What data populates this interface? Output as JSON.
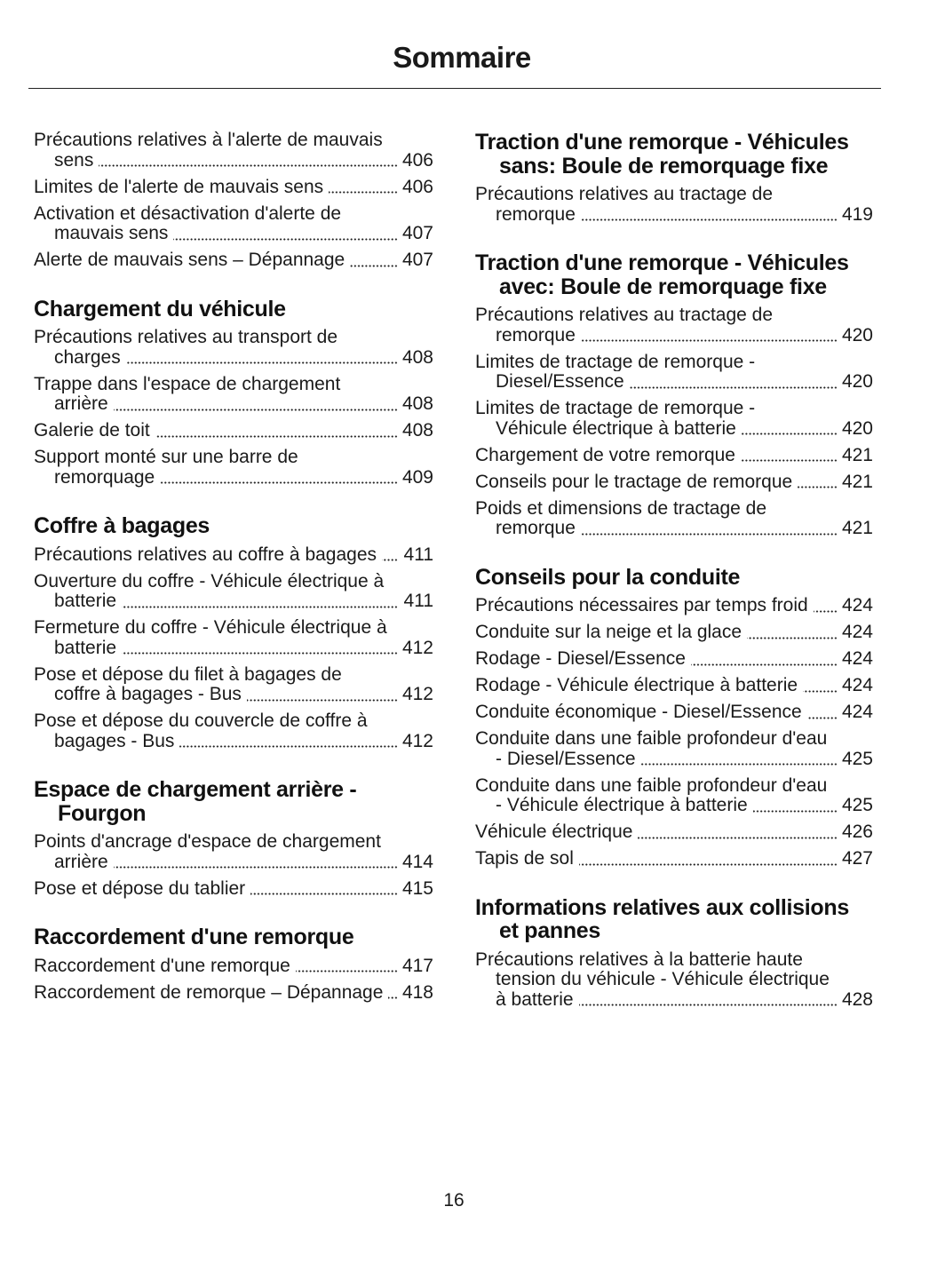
{
  "header": {
    "title": "Sommaire"
  },
  "footer": {
    "page_number": "16"
  },
  "columns": [
    [
      {
        "heading": "",
        "entries": [
          {
            "text": "Précautions relatives à l'alerte de mauvais sens",
            "page": "406"
          },
          {
            "text": "Limites de l'alerte de mauvais sens",
            "page": "406"
          },
          {
            "text": "Activation et désactivation d'alerte de mauvais sens",
            "page": "407"
          },
          {
            "text": "Alerte de mauvais sens – Dépannage",
            "page": "407"
          }
        ]
      },
      {
        "heading": "Chargement du véhicule",
        "entries": [
          {
            "text": "Précautions relatives au transport de charges",
            "page": "408"
          },
          {
            "text": "Trappe dans l'espace de chargement arrière",
            "page": "408"
          },
          {
            "text": "Galerie de toit",
            "page": "408"
          },
          {
            "text": "Support monté sur une barre de remorquage",
            "page": "409"
          }
        ]
      },
      {
        "heading": "Coffre à bagages",
        "entries": [
          {
            "text": "Précautions relatives au coffre à bagages",
            "page": "411"
          },
          {
            "text": "Ouverture du coffre - Véhicule électrique à batterie",
            "page": "411"
          },
          {
            "text": "Fermeture du coffre - Véhicule électrique à batterie",
            "page": "412"
          },
          {
            "text": "Pose et dépose du filet à bagages de coffre à bagages - Bus",
            "page": "412"
          },
          {
            "text": "Pose et dépose du couvercle de coffre à bagages - Bus",
            "page": "412"
          }
        ]
      },
      {
        "heading": "Espace de chargement arrière - Fourgon",
        "entries": [
          {
            "text": "Points d'ancrage d'espace de chargement arrière",
            "page": "414"
          },
          {
            "text": "Pose et dépose du tablier",
            "page": "415"
          }
        ]
      },
      {
        "heading": "Raccordement d'une remorque",
        "entries": [
          {
            "text": "Raccordement d'une remorque",
            "page": "417"
          },
          {
            "text": "Raccordement de remorque – Dépannage",
            "page": "418"
          }
        ]
      }
    ],
    [
      {
        "heading": "Traction d'une remorque - Véhicules sans: Boule de remorquage fixe",
        "entries": [
          {
            "text": "Précautions relatives au tractage de remorque",
            "page": "419"
          }
        ]
      },
      {
        "heading": "Traction d'une remorque - Véhicules avec: Boule de remorquage fixe",
        "entries": [
          {
            "text": "Précautions relatives au tractage de remorque",
            "page": "420"
          },
          {
            "text": "Limites de tractage de remorque - Diesel/Essence",
            "page": "420"
          },
          {
            "text": "Limites de tractage de remorque - Véhicule électrique à batterie",
            "page": "420"
          },
          {
            "text": "Chargement de votre remorque",
            "page": "421"
          },
          {
            "text": "Conseils pour le tractage de remorque",
            "page": "421"
          },
          {
            "text": "Poids et dimensions de tractage de remorque",
            "page": "421"
          }
        ]
      },
      {
        "heading": "Conseils pour la conduite",
        "entries": [
          {
            "text": "Précautions nécessaires par temps froid",
            "page": "424"
          },
          {
            "text": "Conduite sur la neige et la glace",
            "page": "424"
          },
          {
            "text": "Rodage - Diesel/Essence",
            "page": "424"
          },
          {
            "text": "Rodage - Véhicule électrique à batterie",
            "page": "424"
          },
          {
            "text": "Conduite économique - Diesel/Essence",
            "page": "424"
          },
          {
            "text": "Conduite dans une faible profondeur d'eau - Diesel/Essence",
            "page": "425"
          },
          {
            "text": "Conduite dans une faible profondeur d'eau - Véhicule électrique à batterie",
            "page": "425"
          },
          {
            "text": "Véhicule électrique",
            "page": "426"
          },
          {
            "text": "Tapis de sol",
            "page": "427"
          }
        ]
      },
      {
        "heading": "Informations relatives aux collisions et pannes",
        "entries": [
          {
            "text": "Précautions relatives à la batterie haute tension du véhicule - Véhicule électrique à batterie",
            "page": "428"
          }
        ]
      }
    ]
  ]
}
